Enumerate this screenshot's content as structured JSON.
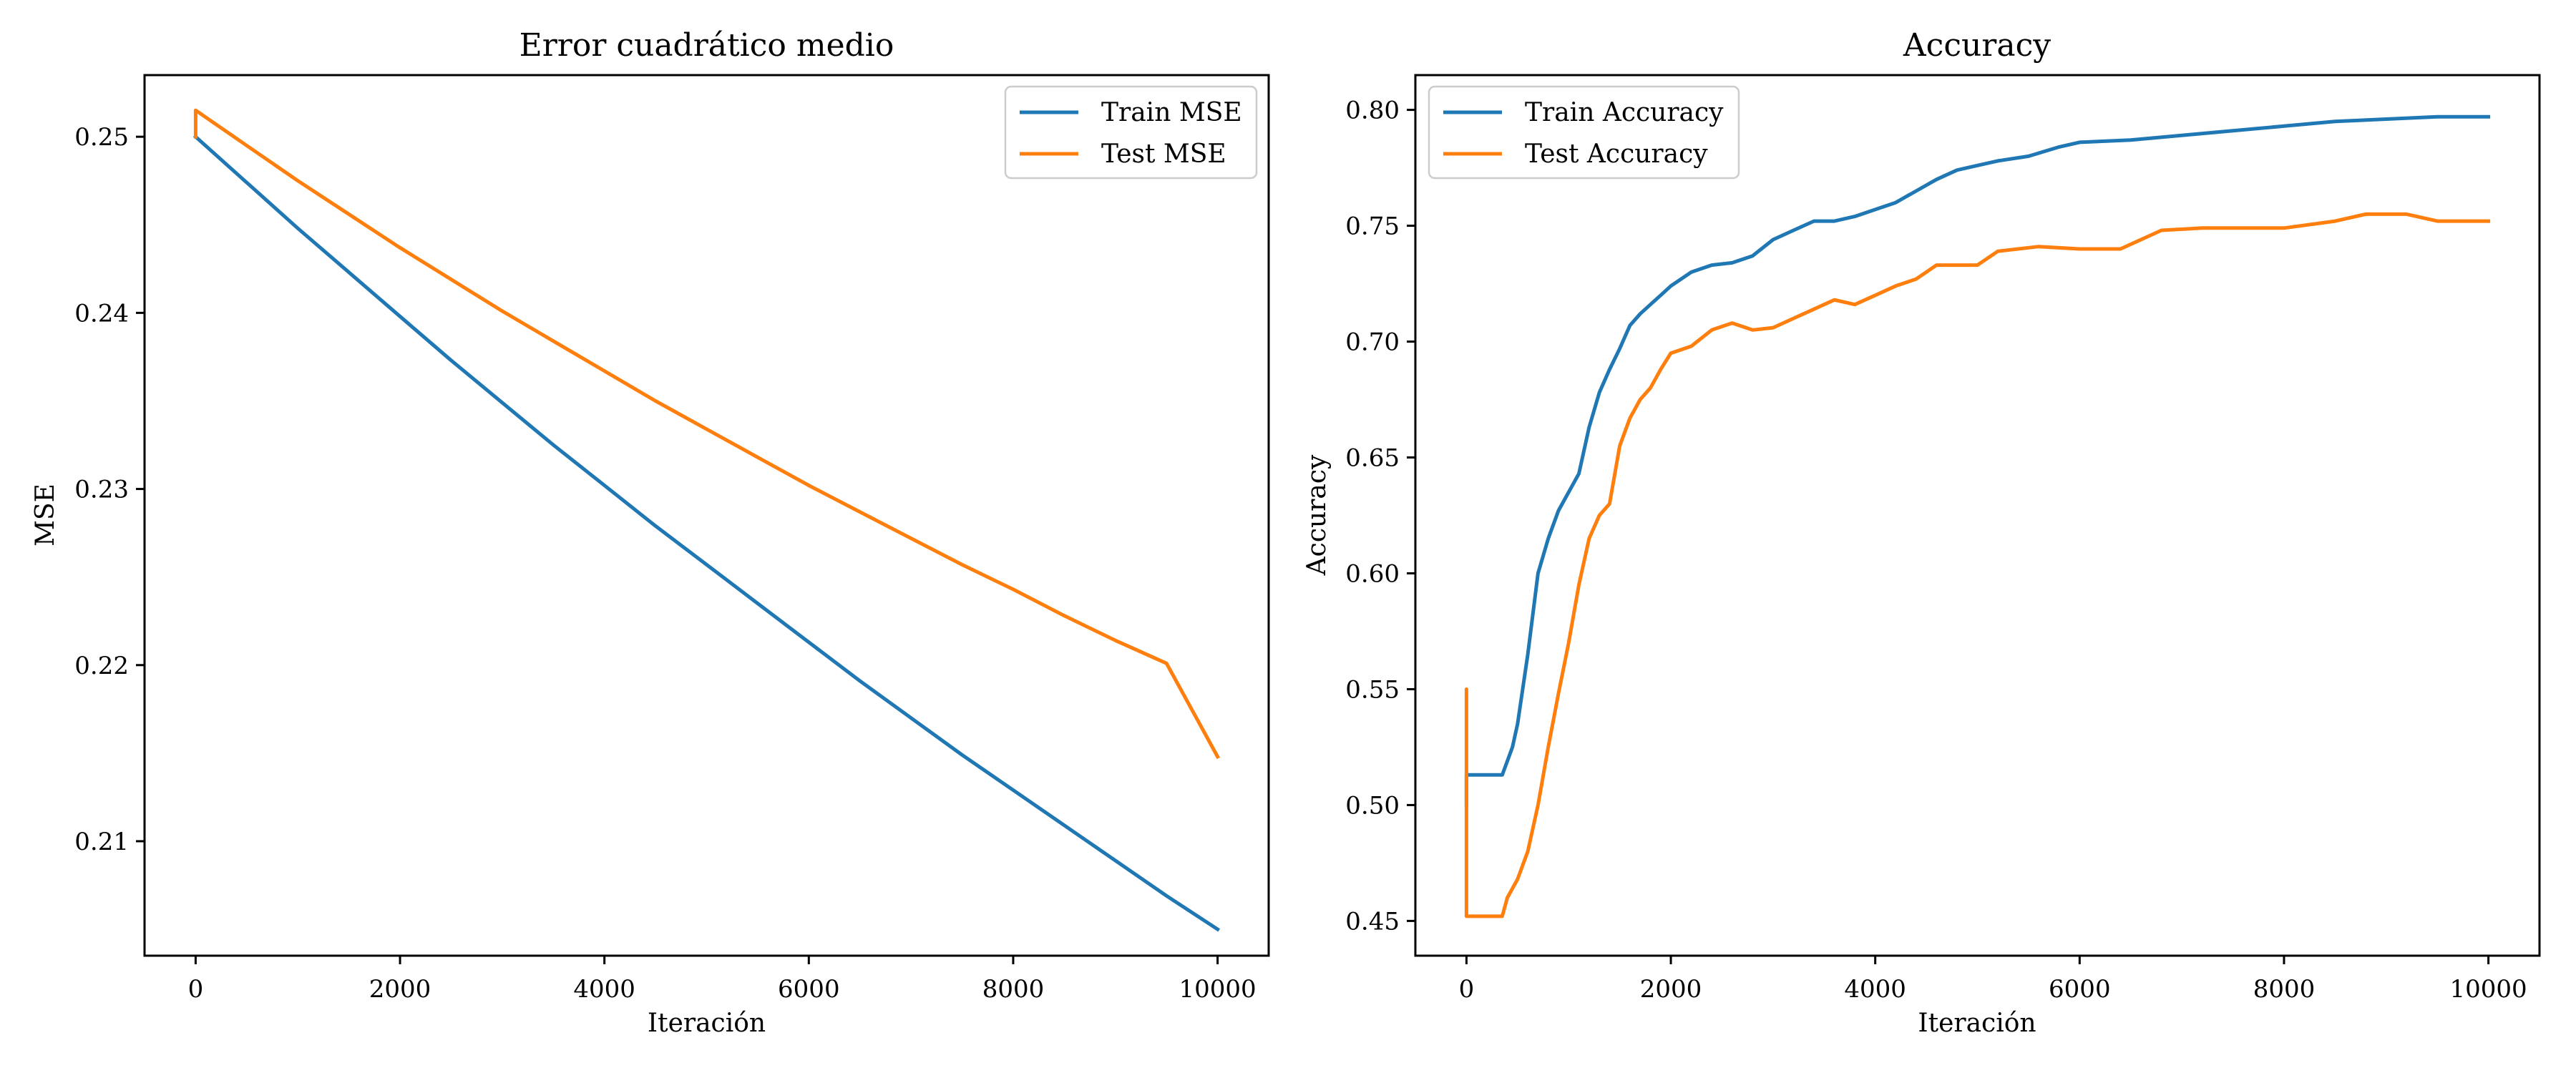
{
  "chart_data": [
    {
      "type": "line",
      "title": "Error cuadrático medio",
      "xlabel": "Iteración",
      "ylabel": "MSE",
      "xlim": [
        -500,
        10500
      ],
      "ylim": [
        0.2035,
        0.2535
      ],
      "xticks": [
        0,
        2000,
        4000,
        6000,
        8000,
        10000
      ],
      "yticks": [
        0.21,
        0.22,
        0.23,
        0.24,
        0.25
      ],
      "legend": "upper right",
      "grid": false,
      "series": [
        {
          "name": "Train MSE",
          "color": "#1f77b4",
          "x": [
            0,
            500,
            1000,
            1500,
            2000,
            2500,
            3000,
            3500,
            4000,
            4500,
            5000,
            5500,
            6000,
            6500,
            7000,
            7500,
            8000,
            8500,
            9000,
            9500,
            10000
          ],
          "y": [
            0.25,
            0.2474,
            0.2448,
            0.2423,
            0.2398,
            0.2373,
            0.2349,
            0.2325,
            0.2302,
            0.2279,
            0.2257,
            0.2235,
            0.2213,
            0.2191,
            0.217,
            0.2149,
            0.2129,
            0.2109,
            0.2089,
            0.2069,
            0.205
          ]
        },
        {
          "name": "Test MSE",
          "color": "#ff7f0e",
          "x": [
            0,
            0,
            500,
            1000,
            1500,
            2000,
            2500,
            3000,
            3500,
            4000,
            4500,
            5000,
            5500,
            6000,
            6500,
            7000,
            7500,
            8000,
            8500,
            9000,
            9500,
            10000
          ],
          "y": [
            0.25,
            0.2515,
            0.2495,
            0.2475,
            0.2456,
            0.2437,
            0.2419,
            0.2401,
            0.2384,
            0.2367,
            0.235,
            0.2334,
            0.2318,
            0.2302,
            0.2287,
            0.2272,
            0.2257,
            0.2243,
            0.2228,
            0.2214,
            0.2201,
            0.2148
          ]
        }
      ]
    },
    {
      "type": "line",
      "title": "Accuracy",
      "xlabel": "Iteración",
      "ylabel": "Accuracy",
      "xlim": [
        -500,
        10500
      ],
      "ylim": [
        0.435,
        0.815
      ],
      "xticks": [
        0,
        2000,
        4000,
        6000,
        8000,
        10000
      ],
      "yticks": [
        0.45,
        0.5,
        0.55,
        0.6,
        0.65,
        0.7,
        0.75,
        0.8
      ],
      "legend": "upper left",
      "grid": false,
      "series": [
        {
          "name": "Train Accuracy",
          "color": "#1f77b4",
          "x": [
            0,
            0,
            350,
            450,
            500,
            600,
            700,
            800,
            900,
            1000,
            1100,
            1200,
            1300,
            1400,
            1500,
            1600,
            1700,
            1800,
            1900,
            2000,
            2200,
            2400,
            2600,
            2800,
            3000,
            3200,
            3400,
            3600,
            3800,
            4000,
            4200,
            4400,
            4600,
            4800,
            5000,
            5200,
            5500,
            5800,
            6000,
            6500,
            7000,
            7500,
            8000,
            8500,
            9000,
            9500,
            10000
          ],
          "y": [
            0.5,
            0.513,
            0.513,
            0.525,
            0.535,
            0.565,
            0.6,
            0.615,
            0.627,
            0.635,
            0.643,
            0.663,
            0.678,
            0.688,
            0.697,
            0.707,
            0.712,
            0.716,
            0.72,
            0.724,
            0.73,
            0.733,
            0.734,
            0.737,
            0.744,
            0.748,
            0.752,
            0.752,
            0.754,
            0.757,
            0.76,
            0.765,
            0.77,
            0.774,
            0.776,
            0.778,
            0.78,
            0.784,
            0.786,
            0.787,
            0.789,
            0.791,
            0.793,
            0.795,
            0.796,
            0.797,
            0.797
          ]
        },
        {
          "name": "Test Accuracy",
          "color": "#ff7f0e",
          "x": [
            0,
            0,
            0,
            350,
            400,
            500,
            600,
            700,
            800,
            900,
            1000,
            1100,
            1200,
            1300,
            1400,
            1500,
            1600,
            1700,
            1800,
            1900,
            2000,
            2200,
            2400,
            2600,
            2800,
            3000,
            3200,
            3400,
            3600,
            3800,
            4000,
            4200,
            4400,
            4600,
            5000,
            5200,
            5600,
            6000,
            6400,
            6600,
            6800,
            7200,
            7600,
            8000,
            8500,
            8800,
            9200,
            9500,
            10000
          ],
          "y": [
            0.5,
            0.55,
            0.452,
            0.452,
            0.46,
            0.468,
            0.48,
            0.5,
            0.525,
            0.548,
            0.57,
            0.595,
            0.615,
            0.625,
            0.63,
            0.655,
            0.667,
            0.675,
            0.68,
            0.688,
            0.695,
            0.698,
            0.705,
            0.708,
            0.705,
            0.706,
            0.71,
            0.714,
            0.718,
            0.716,
            0.72,
            0.724,
            0.727,
            0.733,
            0.733,
            0.739,
            0.741,
            0.74,
            0.74,
            0.744,
            0.748,
            0.749,
            0.749,
            0.749,
            0.752,
            0.755,
            0.755,
            0.752,
            0.752
          ]
        }
      ]
    }
  ]
}
